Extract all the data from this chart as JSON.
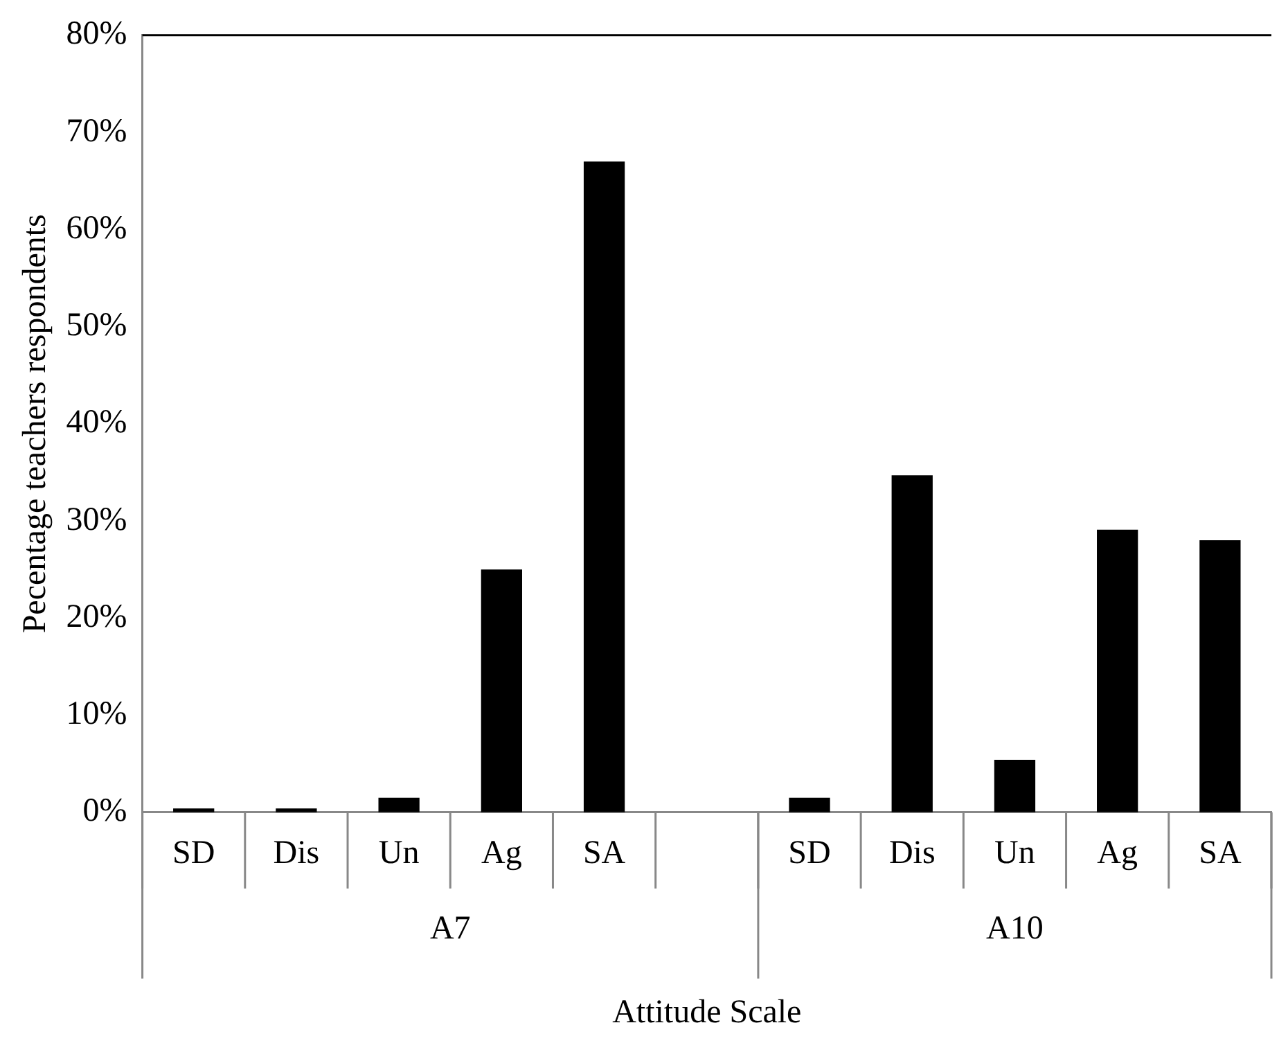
{
  "chart_data": {
    "type": "bar",
    "xlabel": "Attitude Scale",
    "ylabel": "Pecentage teachers respondents",
    "categories": [
      "SD",
      "Dis",
      "Un",
      "Ag",
      "SA",
      null,
      "SD",
      "Dis",
      "Un",
      "Ag",
      "SA"
    ],
    "annotations": [
      "A7",
      "A10"
    ],
    "values": [
      0.4,
      0.4,
      1.5,
      25,
      67,
      null,
      1.5,
      34.7,
      5.4,
      29.1,
      28.0
    ],
    "color": "#000000",
    "ylim": [
      0,
      80
    ],
    "yticks": [
      {
        "value": 0,
        "label": "0%"
      },
      {
        "value": 10,
        "label": "10%"
      },
      {
        "value": 20,
        "label": "20%"
      },
      {
        "value": 30,
        "label": "30%"
      },
      {
        "value": 40,
        "label": "40%"
      },
      {
        "value": 50,
        "label": "50%"
      },
      {
        "value": 60,
        "label": "60%"
      },
      {
        "value": 70,
        "label": "70%"
      },
      {
        "value": 80,
        "label": "80%"
      }
    ],
    "grid": false,
    "legend": false
  }
}
